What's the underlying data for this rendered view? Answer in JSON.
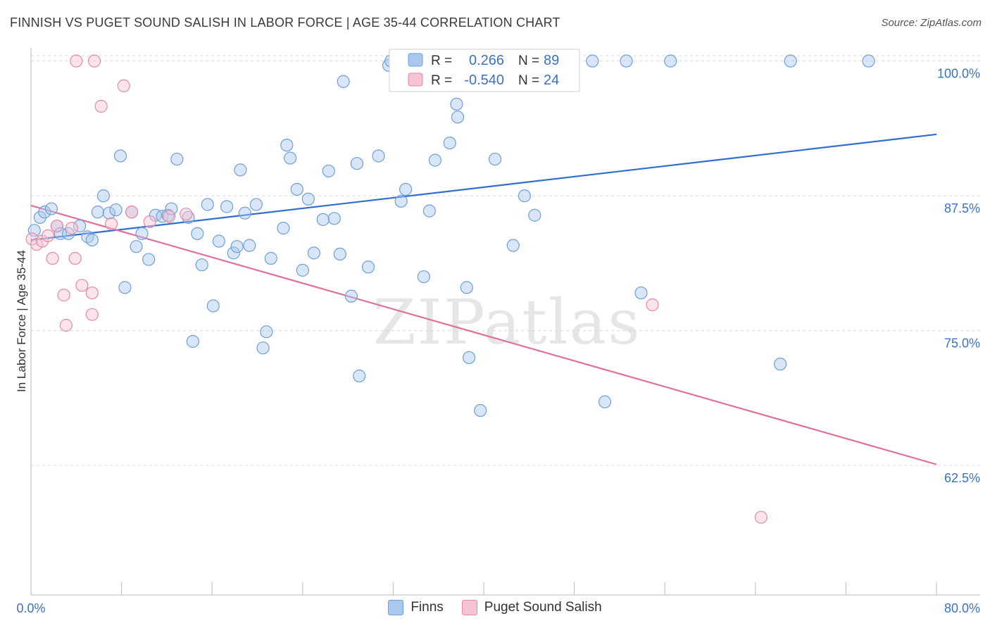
{
  "title": "FINNISH VS PUGET SOUND SALISH IN LABOR FORCE | AGE 35-44 CORRELATION CHART",
  "source": "Source: ZipAtlas.com",
  "watermark": "ZIPatlas",
  "colors": {
    "blue_fill": "#a9c8ee",
    "blue_stroke": "#6f9fd8",
    "blue_line": "#2f6fd0",
    "pink_fill": "#f6c3d2",
    "pink_stroke": "#e58aa7",
    "pink_line": "#e0709a",
    "value_text": "#3a72c8",
    "grid": "#d9d9d9"
  },
  "legend_top": [
    {
      "r_label": "R =",
      "r_value": "0.266",
      "n_label": "N =",
      "n_value": "89"
    },
    {
      "r_label": "R =",
      "r_value": "-0.540",
      "n_label": "N =",
      "n_value": "24"
    }
  ],
  "chart_data": {
    "type": "scatter",
    "title": "FINNISH VS PUGET SOUND SALISH IN LABOR FORCE | AGE 35-44 CORRELATION CHART",
    "xlabel": "",
    "ylabel": "In Labor Force | Age 35-44",
    "xlim": [
      0,
      80
    ],
    "ylim": [
      50.5,
      100.5
    ],
    "x_tick_labels": [
      "0.0%",
      "80.0%"
    ],
    "y_ticks": [
      62.5,
      75.0,
      87.5,
      100.0
    ],
    "y_tick_labels": [
      "62.5%",
      "75.0%",
      "87.5%",
      "100.0%"
    ],
    "grid": true,
    "legend_position": "bottom",
    "series": [
      {
        "name": "Finns",
        "color": "#a9c8ee",
        "trend": {
          "x": [
            0,
            80
          ],
          "y": [
            83.4,
            93.2
          ]
        },
        "points": [
          [
            0.3,
            84.3
          ],
          [
            0.8,
            85.5
          ],
          [
            1.2,
            86.0
          ],
          [
            1.8,
            86.3
          ],
          [
            2.3,
            84.7
          ],
          [
            2.6,
            84.0
          ],
          [
            3.3,
            84.0
          ],
          [
            4.3,
            84.7
          ],
          [
            5.0,
            83.7
          ],
          [
            5.4,
            83.4
          ],
          [
            5.9,
            86.0
          ],
          [
            6.4,
            87.5
          ],
          [
            6.9,
            85.9
          ],
          [
            7.5,
            86.2
          ],
          [
            7.9,
            91.2
          ],
          [
            8.3,
            79.0
          ],
          [
            8.9,
            86.0
          ],
          [
            9.3,
            82.8
          ],
          [
            9.8,
            84.0
          ],
          [
            10.4,
            81.6
          ],
          [
            11.0,
            85.7
          ],
          [
            11.6,
            85.6
          ],
          [
            12.1,
            85.7
          ],
          [
            12.4,
            86.3
          ],
          [
            12.9,
            90.9
          ],
          [
            13.9,
            85.5
          ],
          [
            14.3,
            74.0
          ],
          [
            14.7,
            84.0
          ],
          [
            15.1,
            81.1
          ],
          [
            15.6,
            86.7
          ],
          [
            16.1,
            77.3
          ],
          [
            16.6,
            83.3
          ],
          [
            17.3,
            86.5
          ],
          [
            17.9,
            82.2
          ],
          [
            18.2,
            82.8
          ],
          [
            18.5,
            89.9
          ],
          [
            18.9,
            85.9
          ],
          [
            19.3,
            82.9
          ],
          [
            19.9,
            86.7
          ],
          [
            20.5,
            73.4
          ],
          [
            20.8,
            74.9
          ],
          [
            21.2,
            81.7
          ],
          [
            22.3,
            84.5
          ],
          [
            22.6,
            92.2
          ],
          [
            22.9,
            91.0
          ],
          [
            23.5,
            88.1
          ],
          [
            24.0,
            80.6
          ],
          [
            24.5,
            87.2
          ],
          [
            25.0,
            82.2
          ],
          [
            25.8,
            85.3
          ],
          [
            26.3,
            89.8
          ],
          [
            26.8,
            85.4
          ],
          [
            27.3,
            82.1
          ],
          [
            27.6,
            98.1
          ],
          [
            28.3,
            78.2
          ],
          [
            28.8,
            90.5
          ],
          [
            29.0,
            70.8
          ],
          [
            29.8,
            80.9
          ],
          [
            30.7,
            91.2
          ],
          [
            31.6,
            99.6
          ],
          [
            31.8,
            100.0
          ],
          [
            32.7,
            87.0
          ],
          [
            33.1,
            88.1
          ],
          [
            34.7,
            80.0
          ],
          [
            34.9,
            100.0
          ],
          [
            35.2,
            86.1
          ],
          [
            35.7,
            90.8
          ],
          [
            37.0,
            92.4
          ],
          [
            37.6,
            96.0
          ],
          [
            37.7,
            94.8
          ],
          [
            38.3,
            100.0
          ],
          [
            38.5,
            79.0
          ],
          [
            38.7,
            72.5
          ],
          [
            39.7,
            67.6
          ],
          [
            40.5,
            100.0
          ],
          [
            41.0,
            90.9
          ],
          [
            42.5,
            100.0
          ],
          [
            42.6,
            82.9
          ],
          [
            43.6,
            87.5
          ],
          [
            44.5,
            85.7
          ],
          [
            45.5,
            100.0
          ],
          [
            49.6,
            100.0
          ],
          [
            50.7,
            68.4
          ],
          [
            52.6,
            100.0
          ],
          [
            53.9,
            78.5
          ],
          [
            56.5,
            100.0
          ],
          [
            66.2,
            71.9
          ],
          [
            67.1,
            100.0
          ],
          [
            74.0,
            100.0
          ]
        ]
      },
      {
        "name": "Puget Sound Salish",
        "color": "#f6c3d2",
        "trend": {
          "x": [
            0,
            80
          ],
          "y": [
            86.6,
            62.6
          ]
        },
        "points": [
          [
            0.1,
            83.5
          ],
          [
            0.5,
            83.0
          ],
          [
            1.0,
            83.3
          ],
          [
            1.5,
            83.8
          ],
          [
            1.9,
            81.7
          ],
          [
            2.3,
            84.7
          ],
          [
            2.9,
            78.3
          ],
          [
            3.1,
            75.5
          ],
          [
            3.6,
            84.5
          ],
          [
            3.9,
            81.7
          ],
          [
            4.0,
            100.0
          ],
          [
            4.5,
            79.2
          ],
          [
            5.4,
            78.5
          ],
          [
            5.4,
            76.5
          ],
          [
            5.6,
            100.0
          ],
          [
            6.2,
            95.8
          ],
          [
            7.1,
            84.9
          ],
          [
            8.2,
            97.7
          ],
          [
            8.9,
            86.0
          ],
          [
            10.5,
            85.1
          ],
          [
            12.2,
            85.6
          ],
          [
            13.7,
            85.8
          ],
          [
            54.9,
            77.4
          ],
          [
            64.5,
            57.7
          ]
        ]
      }
    ]
  },
  "legend_bottom": [
    {
      "label": "Finns",
      "color": "#a9c8ee",
      "stroke": "#6f9fd8"
    },
    {
      "label": "Puget Sound Salish",
      "color": "#f6c3d2",
      "stroke": "#e58aa7"
    }
  ]
}
